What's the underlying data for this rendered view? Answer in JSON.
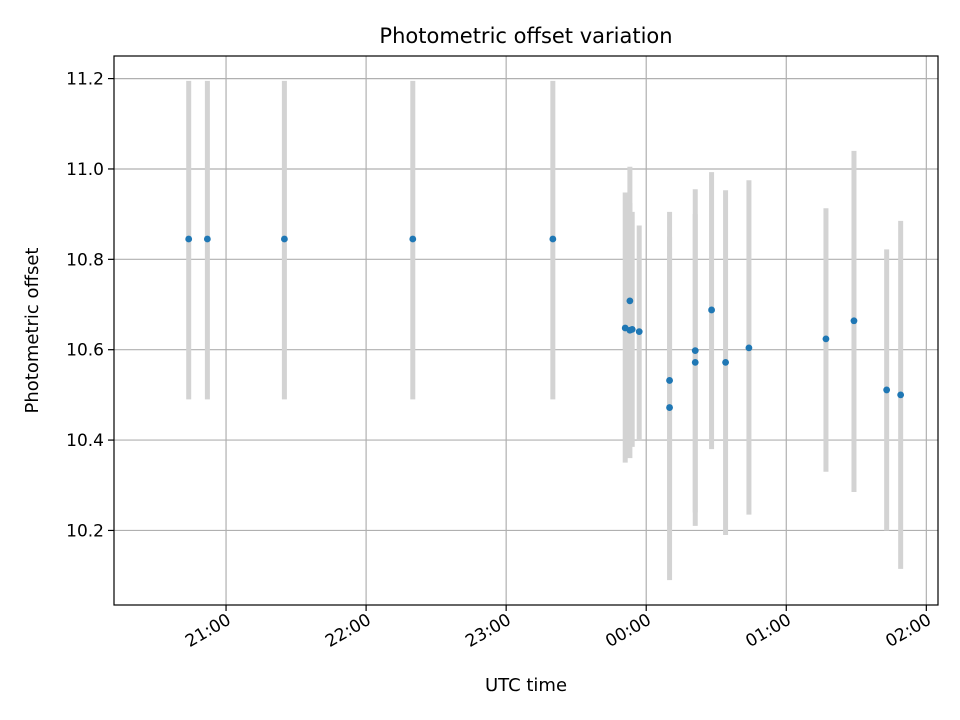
{
  "chart_data": {
    "type": "scatter",
    "title": "Photometric offset variation",
    "xlabel": "UTC time",
    "ylabel": "Photometric offset",
    "x_tick_labels": [
      "21:00",
      "22:00",
      "23:00",
      "00:00",
      "01:00",
      "02:00"
    ],
    "y_tick_labels": [
      "10.2",
      "10.4",
      "10.6",
      "10.8",
      "11.0",
      "11.2"
    ],
    "y_ticks": [
      10.2,
      10.4,
      10.6,
      10.8,
      11.0,
      11.2
    ],
    "xlim": [
      "20:12",
      "02:05"
    ],
    "ylim": [
      10.035,
      11.25
    ],
    "grid": true,
    "colors": {
      "point": "#1f77b4",
      "errorbar": "#d3d3d3",
      "grid": "#b0b0b0"
    },
    "points": [
      {
        "x": "20:44",
        "y": 10.845,
        "yerr_low": 10.49,
        "yerr_high": 11.195
      },
      {
        "x": "20:52",
        "y": 10.845,
        "yerr_low": 10.49,
        "yerr_high": 11.195
      },
      {
        "x": "21:25",
        "y": 10.845,
        "yerr_low": 10.49,
        "yerr_high": 11.195
      },
      {
        "x": "22:20",
        "y": 10.845,
        "yerr_low": 10.49,
        "yerr_high": 11.195
      },
      {
        "x": "23:20",
        "y": 10.845,
        "yerr_low": 10.49,
        "yerr_high": 11.195
      },
      {
        "x": "23:51",
        "y": 10.648,
        "yerr_low": 10.35,
        "yerr_high": 10.948
      },
      {
        "x": "23:53",
        "y": 10.708,
        "yerr_low": 10.41,
        "yerr_high": 11.005
      },
      {
        "x": "23:53",
        "y": 10.643,
        "yerr_low": 10.36,
        "yerr_high": 10.925
      },
      {
        "x": "23:54",
        "y": 10.645,
        "yerr_low": 10.385,
        "yerr_high": 10.905
      },
      {
        "x": "23:57",
        "y": 10.64,
        "yerr_low": 10.4,
        "yerr_high": 10.875
      },
      {
        "x": "00:10",
        "y": 10.532,
        "yerr_low": 10.21,
        "yerr_high": 10.85
      },
      {
        "x": "00:10",
        "y": 10.472,
        "yerr_low": 10.09,
        "yerr_high": 10.905
      },
      {
        "x": "00:21",
        "y": 10.598,
        "yerr_low": 10.21,
        "yerr_high": 10.955
      },
      {
        "x": "00:21",
        "y": 10.572,
        "yerr_low": 10.24,
        "yerr_high": 10.9
      },
      {
        "x": "00:28",
        "y": 10.688,
        "yerr_low": 10.38,
        "yerr_high": 10.993
      },
      {
        "x": "00:34",
        "y": 10.572,
        "yerr_low": 10.19,
        "yerr_high": 10.953
      },
      {
        "x": "00:44",
        "y": 10.604,
        "yerr_low": 10.235,
        "yerr_high": 10.975
      },
      {
        "x": "01:17",
        "y": 10.624,
        "yerr_low": 10.33,
        "yerr_high": 10.913
      },
      {
        "x": "01:29",
        "y": 10.664,
        "yerr_low": 10.285,
        "yerr_high": 11.04
      },
      {
        "x": "01:43",
        "y": 10.511,
        "yerr_low": 10.2,
        "yerr_high": 10.822
      },
      {
        "x": "01:49",
        "y": 10.5,
        "yerr_low": 10.115,
        "yerr_high": 10.885
      }
    ]
  }
}
